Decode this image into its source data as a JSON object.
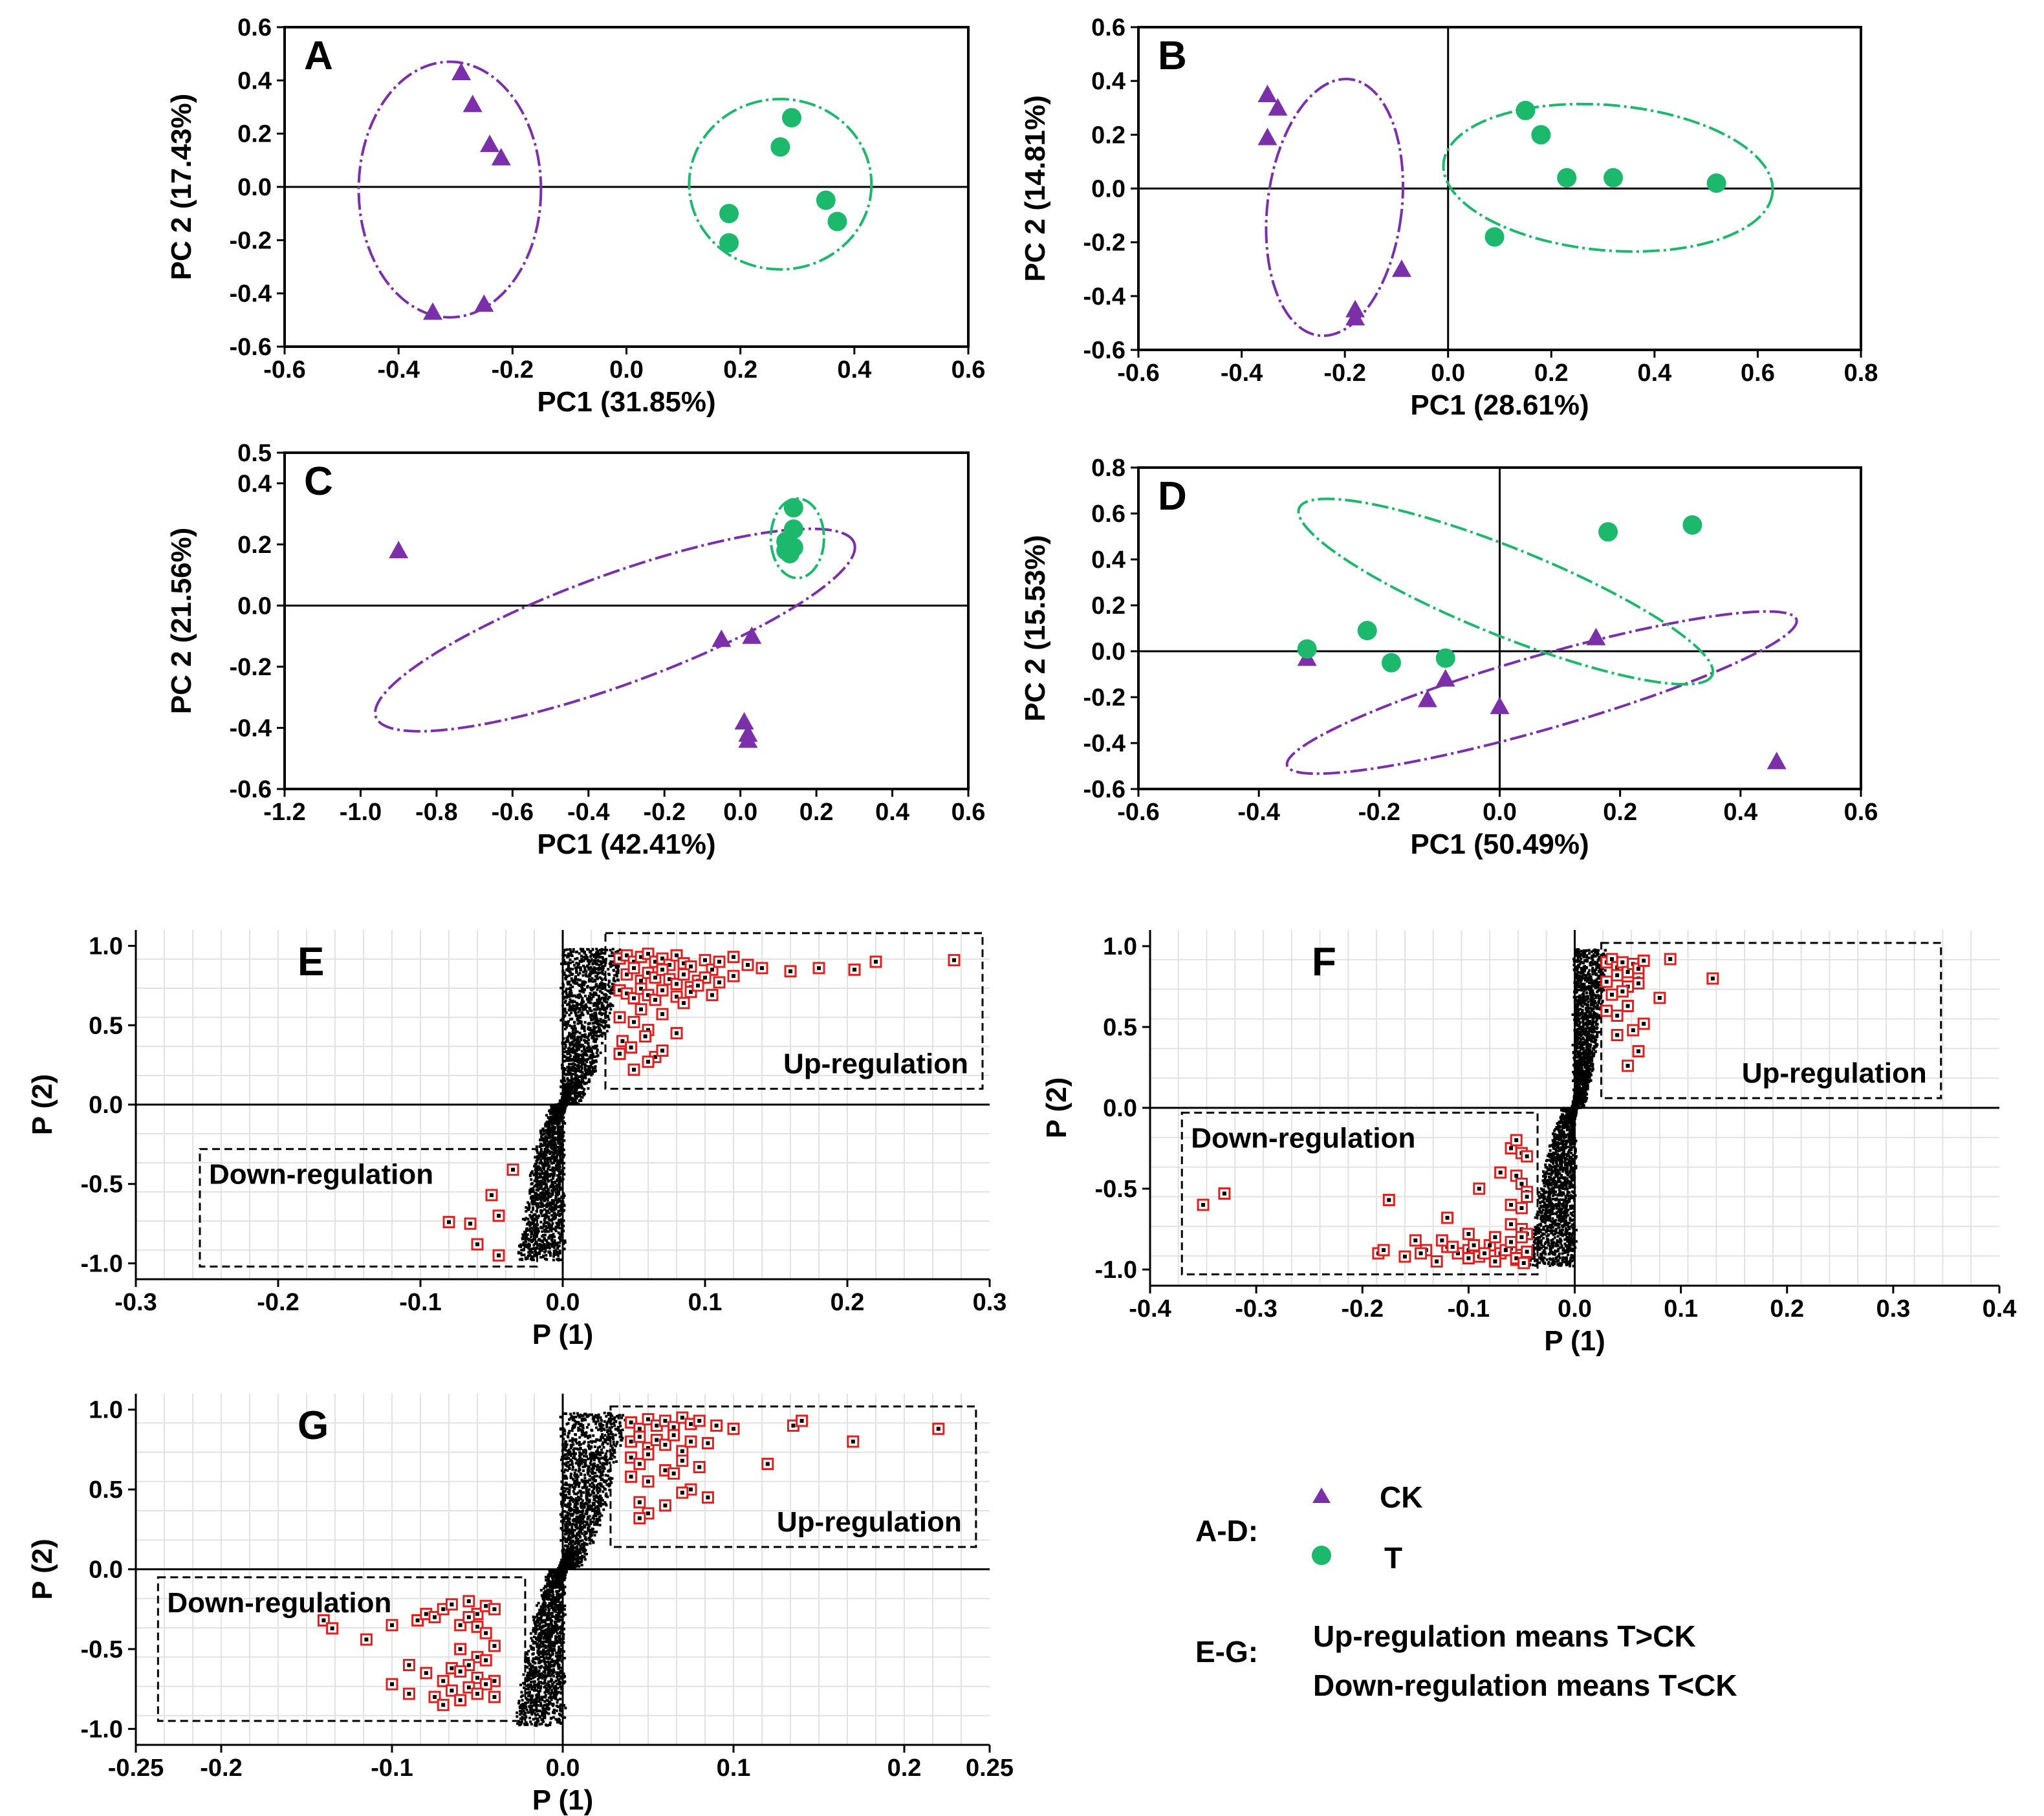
{
  "figure_colors": {
    "ck": "#7b2fa8",
    "t": "#1cb86b",
    "marker_red": "#e0201e",
    "loading": "#000000"
  },
  "legend": {
    "ad_label": "A-D:",
    "ck_label": "CK",
    "t_label": "T",
    "eg_label": "E-G:",
    "up_text": "Up-regulation means T>CK",
    "down_text": "Down-regulation means T<CK"
  },
  "chart_data": [
    {
      "id": "A",
      "type": "scatter",
      "title": "A",
      "xlabel": "PC1 (31.85%)",
      "ylabel": "PC 2 (17.43%)",
      "xlim": [
        -0.6,
        0.6
      ],
      "ylim": [
        -0.6,
        0.6
      ],
      "xticks": [
        -0.6,
        -0.4,
        -0.2,
        0.0,
        0.2,
        0.4,
        0.6
      ],
      "xtick_labels": [
        "-0.6",
        "-0.4",
        "-0.2",
        "0.0",
        "0.2",
        "0.4",
        "0.6"
      ],
      "yticks": [
        0.6,
        0.4,
        0.2,
        0.0,
        -0.2,
        -0.4,
        -0.6
      ],
      "ytick_labels": [
        "0.6",
        "0.4",
        "0.2",
        "0.0",
        "-0.2",
        "-0.4",
        "-0.6"
      ],
      "crosshair": {
        "h": true,
        "v": false
      },
      "series": [
        {
          "name": "CK",
          "marker": "triangle",
          "x": [
            -0.29,
            -0.27,
            -0.24,
            -0.22,
            -0.34,
            -0.25
          ],
          "y": [
            0.43,
            0.31,
            0.16,
            0.11,
            -0.47,
            -0.44
          ],
          "ellipse": {
            "cx": -0.31,
            "cy": -0.01,
            "rx": 0.16,
            "ry": 0.48,
            "angle": 0
          }
        },
        {
          "name": "T",
          "marker": "circle",
          "x": [
            0.29,
            0.27,
            0.18,
            0.18,
            0.35,
            0.37
          ],
          "y": [
            0.26,
            0.15,
            -0.1,
            -0.21,
            -0.05,
            -0.13
          ],
          "ellipse": {
            "cx": 0.27,
            "cy": 0.01,
            "rx": 0.16,
            "ry": 0.32,
            "angle": 0
          }
        }
      ]
    },
    {
      "id": "B",
      "type": "scatter",
      "title": "B",
      "xlabel": "PC1 (28.61%)",
      "ylabel": "PC 2 (14.81%)",
      "xlim": [
        -0.6,
        0.8
      ],
      "ylim": [
        -0.6,
        0.6
      ],
      "xticks": [
        -0.6,
        -0.4,
        -0.2,
        0.0,
        0.2,
        0.4,
        0.6,
        0.8
      ],
      "xtick_labels": [
        "-0.6",
        "-0.4",
        "-0.2",
        "0.0",
        "0.2",
        "0.4",
        "0.6",
        "0.8"
      ],
      "yticks": [
        0.6,
        0.4,
        0.2,
        0.0,
        -0.2,
        -0.4,
        -0.6
      ],
      "ytick_labels": [
        "0.6",
        "0.4",
        "0.2",
        "0.0",
        "-0.2",
        "-0.4",
        "-0.6"
      ],
      "crosshair": {
        "h": true,
        "v": true
      },
      "series": [
        {
          "name": "CK",
          "marker": "triangle",
          "x": [
            -0.35,
            -0.33,
            -0.35,
            -0.09,
            -0.18,
            -0.18
          ],
          "y": [
            0.35,
            0.3,
            0.19,
            -0.3,
            -0.45,
            -0.48
          ],
          "ellipse": {
            "cx": -0.22,
            "cy": -0.07,
            "rx": 0.13,
            "ry": 0.48,
            "angle": -7
          }
        },
        {
          "name": "T",
          "marker": "circle",
          "x": [
            0.15,
            0.18,
            0.23,
            0.32,
            0.52,
            0.09
          ],
          "y": [
            0.29,
            0.2,
            0.04,
            0.04,
            0.02,
            -0.18
          ],
          "ellipse": {
            "cx": 0.31,
            "cy": 0.04,
            "rx": 0.32,
            "ry": 0.27,
            "angle": -5
          }
        }
      ]
    },
    {
      "id": "C",
      "type": "scatter",
      "title": "C",
      "xlabel": "PC1 (42.41%)",
      "ylabel": "PC 2 (21.56%)",
      "xlim": [
        -1.2,
        0.6
      ],
      "ylim": [
        -0.6,
        0.5
      ],
      "xticks": [
        -1.2,
        -1.0,
        -0.8,
        -0.6,
        -0.4,
        -0.2,
        0.0,
        0.2,
        0.4,
        0.6
      ],
      "xtick_labels": [
        "-1.2",
        "-1.0",
        "-0.8",
        "-0.6",
        "-0.4",
        "-0.2",
        "0.0",
        "0.2",
        "0.4",
        "0.6"
      ],
      "yticks": [
        0.5,
        0.4,
        0.2,
        0.0,
        -0.2,
        -0.4,
        -0.6
      ],
      "ytick_labels": [
        "0.5",
        "0.4",
        "0.2",
        "0.0",
        "-0.2",
        "-0.4",
        "-0.6"
      ],
      "crosshair": {
        "h": true,
        "v": false
      },
      "series": [
        {
          "name": "CK",
          "marker": "triangle",
          "x": [
            -0.9,
            -0.05,
            0.03,
            0.01,
            0.02,
            0.02
          ],
          "y": [
            0.18,
            -0.11,
            -0.1,
            -0.38,
            -0.42,
            -0.44
          ],
          "ellipse": {
            "cx": -0.33,
            "cy": -0.08,
            "rx": 0.67,
            "ry": 0.18,
            "angle": 20
          }
        },
        {
          "name": "T",
          "marker": "circle",
          "x": [
            0.14,
            0.14,
            0.12,
            0.12,
            0.13,
            0.14
          ],
          "y": [
            0.32,
            0.25,
            0.21,
            0.18,
            0.17,
            0.19
          ],
          "ellipse": {
            "cx": 0.15,
            "cy": 0.22,
            "rx": 0.07,
            "ry": 0.13,
            "angle": 0
          }
        }
      ]
    },
    {
      "id": "D",
      "type": "scatter",
      "title": "D",
      "xlabel": "PC1 (50.49%)",
      "ylabel": "PC 2 (15.53%)",
      "xlim": [
        -0.6,
        0.6
      ],
      "ylim": [
        -0.6,
        0.8
      ],
      "xticks": [
        -0.6,
        -0.4,
        -0.2,
        0.0,
        0.2,
        0.4,
        0.6
      ],
      "xtick_labels": [
        "-0.6",
        "-0.4",
        "-0.2",
        "0.0",
        "0.2",
        "0.4",
        "0.6"
      ],
      "yticks": [
        0.8,
        0.6,
        0.4,
        0.2,
        0.0,
        -0.2,
        -0.4,
        -0.6
      ],
      "ytick_labels": [
        "0.8",
        "0.6",
        "0.4",
        "0.2",
        "0.0",
        "-0.2",
        "-0.4",
        "-0.6"
      ],
      "crosshair": {
        "h": true,
        "v": true
      },
      "series": [
        {
          "name": "CK",
          "marker": "triangle",
          "x": [
            0.16,
            -0.32,
            -0.09,
            -0.12,
            0.0,
            0.46
          ],
          "y": [
            0.06,
            -0.03,
            -0.12,
            -0.21,
            -0.24,
            -0.48
          ],
          "ellipse": {
            "cx": 0.07,
            "cy": -0.18,
            "rx": 0.44,
            "ry": 0.16,
            "angle": 16
          }
        },
        {
          "name": "T",
          "marker": "circle",
          "x": [
            0.18,
            0.32,
            -0.22,
            -0.32,
            -0.18,
            -0.09
          ],
          "y": [
            0.52,
            0.55,
            0.09,
            0.01,
            -0.05,
            -0.03
          ],
          "ellipse": {
            "cx": 0.01,
            "cy": 0.26,
            "rx": 0.37,
            "ry": 0.19,
            "angle": -22
          }
        }
      ]
    },
    {
      "id": "E",
      "type": "scatter",
      "title": "E",
      "xlabel": "P (1)",
      "ylabel": "P (2)",
      "xlim": [
        -0.3,
        0.3
      ],
      "ylim": [
        -1.1,
        1.1
      ],
      "xticks": [
        -0.3,
        -0.2,
        -0.1,
        0.0,
        0.1,
        0.2,
        0.3
      ],
      "xtick_labels": [
        "-0.3",
        "-0.2",
        "-0.1",
        "0.0",
        "0.1",
        "0.2",
        "0.3"
      ],
      "yticks": [
        1.0,
        0.5,
        0.0,
        -0.5,
        -1.0
      ],
      "ytick_labels": [
        "1.0",
        "0.5",
        "0.0",
        "-0.5",
        "-1.0"
      ],
      "up_label": "Up-regulation",
      "down_label": "Down-regulation",
      "up_box": {
        "x0": 0.03,
        "x1": 0.295,
        "y0": 0.1,
        "y1": 1.08
      },
      "down_box": {
        "x0": -0.255,
        "x1": -0.018,
        "y0": -1.02,
        "y1": -0.28
      },
      "cloud": {
        "seed": 11,
        "xmax": 0.035,
        "xmin": -0.025
      },
      "up_points": {
        "x": [
          0.04,
          0.045,
          0.05,
          0.055,
          0.06,
          0.065,
          0.07,
          0.075,
          0.08,
          0.085,
          0.09,
          0.1,
          0.105,
          0.11,
          0.12,
          0.13,
          0.14,
          0.16,
          0.18,
          0.205,
          0.22,
          0.275,
          0.045,
          0.05,
          0.055,
          0.06,
          0.065,
          0.07,
          0.075,
          0.08,
          0.085,
          0.09,
          0.095,
          0.1,
          0.11,
          0.12,
          0.04,
          0.045,
          0.05,
          0.055,
          0.06,
          0.065,
          0.07,
          0.08,
          0.085,
          0.09,
          0.095,
          0.105,
          0.04,
          0.05,
          0.055,
          0.06,
          0.07,
          0.042,
          0.048,
          0.058,
          0.065,
          0.08,
          0.04,
          0.06,
          0.07,
          0.05
        ],
        "y": [
          0.92,
          0.94,
          0.9,
          0.93,
          0.95,
          0.9,
          0.92,
          0.88,
          0.94,
          0.89,
          0.87,
          0.91,
          0.85,
          0.9,
          0.93,
          0.88,
          0.86,
          0.84,
          0.86,
          0.85,
          0.9,
          0.91,
          0.82,
          0.86,
          0.78,
          0.83,
          0.8,
          0.85,
          0.79,
          0.76,
          0.82,
          0.74,
          0.78,
          0.8,
          0.77,
          0.81,
          0.72,
          0.7,
          0.67,
          0.73,
          0.69,
          0.66,
          0.72,
          0.68,
          0.64,
          0.71,
          0.75,
          0.69,
          0.55,
          0.52,
          0.6,
          0.47,
          0.57,
          0.4,
          0.36,
          0.43,
          0.3,
          0.45,
          0.32,
          0.27,
          0.34,
          0.22
        ]
      },
      "down_points": {
        "x": [
          -0.035,
          -0.05,
          -0.045,
          -0.065,
          -0.06,
          -0.045,
          -0.08
        ],
        "y": [
          -0.41,
          -0.57,
          -0.7,
          -0.75,
          -0.88,
          -0.95,
          -0.74
        ]
      }
    },
    {
      "id": "F",
      "type": "scatter",
      "title": "F",
      "xlabel": "P (1)",
      "ylabel": "P (2)",
      "xlim": [
        -0.4,
        0.4
      ],
      "ylim": [
        -1.1,
        1.1
      ],
      "xticks": [
        -0.4,
        -0.3,
        -0.2,
        -0.1,
        0.0,
        0.1,
        0.2,
        0.3,
        0.4
      ],
      "xtick_labels": [
        "-0.4",
        "-0.3",
        "-0.2",
        "-0.1",
        "0.0",
        "0.1",
        "0.2",
        "0.3",
        "0.4"
      ],
      "yticks": [
        1.0,
        0.5,
        0.0,
        -0.5,
        -1.0
      ],
      "ytick_labels": [
        "1.0",
        "0.5",
        "0.0",
        "-0.5",
        "-1.0"
      ],
      "up_label": "Up-regulation",
      "down_label": "Down-regulation",
      "up_box": {
        "x0": 0.025,
        "x1": 0.345,
        "y0": 0.06,
        "y1": 1.02
      },
      "down_box": {
        "x0": -0.37,
        "x1": -0.035,
        "y0": -1.03,
        "y1": -0.03
      },
      "cloud": {
        "seed": 23,
        "xmax": 0.025,
        "xmin": -0.035
      },
      "up_points": {
        "x": [
          0.03,
          0.035,
          0.04,
          0.045,
          0.05,
          0.055,
          0.06,
          0.065,
          0.09,
          0.13,
          0.03,
          0.04,
          0.05,
          0.06,
          0.035,
          0.045,
          0.06,
          0.08,
          0.03,
          0.04,
          0.05,
          0.065,
          0.04,
          0.055,
          0.06,
          0.05
        ],
        "y": [
          0.9,
          0.92,
          0.87,
          0.9,
          0.84,
          0.89,
          0.86,
          0.91,
          0.92,
          0.8,
          0.78,
          0.82,
          0.75,
          0.8,
          0.7,
          0.72,
          0.77,
          0.68,
          0.6,
          0.57,
          0.63,
          0.52,
          0.45,
          0.48,
          0.35,
          0.26
        ]
      },
      "down_points": {
        "x": [
          -0.35,
          -0.33,
          -0.175,
          -0.12,
          -0.09,
          -0.06,
          -0.055,
          -0.05,
          -0.045,
          -0.07,
          -0.055,
          -0.05,
          -0.045,
          -0.06,
          -0.05,
          -0.045,
          -0.1,
          -0.06,
          -0.05,
          -0.045,
          -0.185,
          -0.15,
          -0.14,
          -0.12,
          -0.11,
          -0.1,
          -0.09,
          -0.08,
          -0.07,
          -0.06,
          -0.055,
          -0.05,
          -0.045,
          -0.18,
          -0.16,
          -0.145,
          -0.13,
          -0.115,
          -0.1,
          -0.085,
          -0.075,
          -0.065,
          -0.055,
          -0.048,
          -0.125,
          -0.095,
          -0.075,
          -0.06,
          -0.05
        ],
        "y": [
          -0.6,
          -0.53,
          -0.57,
          -0.68,
          -0.5,
          -0.25,
          -0.2,
          -0.28,
          -0.3,
          -0.4,
          -0.42,
          -0.47,
          -0.52,
          -0.6,
          -0.62,
          -0.55,
          -0.78,
          -0.72,
          -0.75,
          -0.78,
          -0.9,
          -0.82,
          -0.88,
          -0.86,
          -0.9,
          -0.88,
          -0.92,
          -0.85,
          -0.9,
          -0.87,
          -0.94,
          -0.91,
          -0.89,
          -0.88,
          -0.92,
          -0.9,
          -0.95,
          -0.86,
          -0.93,
          -0.9,
          -0.95,
          -0.88,
          -0.93,
          -0.96,
          -0.82,
          -0.85,
          -0.8,
          -0.83,
          -0.8
        ]
      }
    },
    {
      "id": "G",
      "type": "scatter",
      "title": "G",
      "xlabel": "P (1)",
      "ylabel": "P (2)",
      "xlim": [
        -0.25,
        0.25
      ],
      "ylim": [
        -1.1,
        1.1
      ],
      "xticks": [
        -0.25,
        -0.2,
        -0.1,
        0.0,
        0.1,
        0.2,
        0.25
      ],
      "xtick_labels": [
        "-0.25",
        "-0.2",
        "-0.1",
        "0.0",
        "0.1",
        "0.2",
        "0.25"
      ],
      "yticks": [
        1.0,
        0.5,
        0.0,
        -0.5,
        -1.0
      ],
      "ytick_labels": [
        "1.0",
        "0.5",
        "0.0",
        "-0.5",
        "-1.0"
      ],
      "up_label": "Up-regulation",
      "down_label": "Down-regulation",
      "up_box": {
        "x0": 0.028,
        "x1": 0.242,
        "y0": 0.14,
        "y1": 1.02
      },
      "down_box": {
        "x0": -0.237,
        "x1": -0.022,
        "y0": -0.95,
        "y1": -0.05
      },
      "cloud": {
        "seed": 37,
        "xmax": 0.03,
        "xmin": -0.022
      },
      "up_points": {
        "x": [
          0.04,
          0.045,
          0.05,
          0.055,
          0.06,
          0.065,
          0.07,
          0.075,
          0.08,
          0.09,
          0.1,
          0.135,
          0.14,
          0.17,
          0.22,
          0.04,
          0.045,
          0.05,
          0.055,
          0.06,
          0.065,
          0.07,
          0.075,
          0.085,
          0.04,
          0.045,
          0.05,
          0.06,
          0.07,
          0.08,
          0.12,
          0.04,
          0.05,
          0.065,
          0.075,
          0.085,
          0.045,
          0.06,
          0.07,
          0.05,
          0.045
        ],
        "y": [
          0.92,
          0.88,
          0.94,
          0.9,
          0.93,
          0.89,
          0.95,
          0.91,
          0.93,
          0.9,
          0.88,
          0.9,
          0.93,
          0.8,
          0.88,
          0.8,
          0.83,
          0.76,
          0.81,
          0.78,
          0.84,
          0.74,
          0.8,
          0.79,
          0.7,
          0.66,
          0.72,
          0.62,
          0.68,
          0.64,
          0.66,
          0.58,
          0.55,
          0.6,
          0.5,
          0.45,
          0.42,
          0.4,
          0.48,
          0.35,
          0.32
        ]
      },
      "down_points": {
        "x": [
          -0.14,
          -0.135,
          -0.115,
          -0.1,
          -0.09,
          -0.085,
          -0.08,
          -0.075,
          -0.07,
          -0.065,
          -0.06,
          -0.055,
          -0.05,
          -0.045,
          -0.055,
          -0.05,
          -0.045,
          -0.04,
          -0.06,
          -0.05,
          -0.04,
          -0.065,
          -0.055,
          -0.045,
          -0.08,
          -0.07,
          -0.06,
          -0.05,
          -0.04,
          -0.1,
          -0.09,
          -0.075,
          -0.065,
          -0.055,
          -0.045,
          -0.06,
          -0.05,
          -0.04,
          -0.07
        ],
        "y": [
          -0.32,
          -0.37,
          -0.44,
          -0.35,
          -0.6,
          -0.32,
          -0.28,
          -0.3,
          -0.25,
          -0.22,
          -0.35,
          -0.2,
          -0.28,
          -0.23,
          -0.3,
          -0.36,
          -0.4,
          -0.25,
          -0.5,
          -0.55,
          -0.48,
          -0.62,
          -0.6,
          -0.57,
          -0.65,
          -0.7,
          -0.64,
          -0.68,
          -0.7,
          -0.72,
          -0.78,
          -0.8,
          -0.76,
          -0.74,
          -0.72,
          -0.82,
          -0.78,
          -0.8,
          -0.85
        ]
      }
    }
  ]
}
